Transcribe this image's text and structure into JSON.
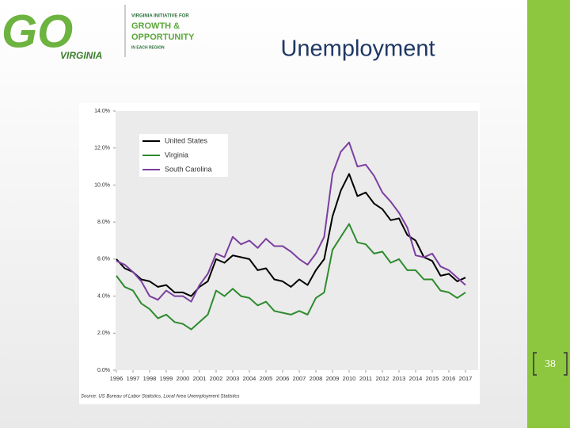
{
  "slide": {
    "logo_mark": "GO",
    "logo_state": "VIRGINIA",
    "logo_line1": "VIRGINIA INITIATIVE FOR",
    "logo_line2": "GROWTH &",
    "logo_line3": "OPPORTUNITY",
    "logo_line4": "IN EACH REGION",
    "title": "Unemployment",
    "page_number": "38"
  },
  "chart_data": {
    "type": "line",
    "source": "Source: US Bureau of Labor Statistics, Local Area Unemployment Statistics",
    "x": [
      1996,
      1996.5,
      1997,
      1997.5,
      1998,
      1998.5,
      1999,
      1999.5,
      2000,
      2000.5,
      2001,
      2001.5,
      2002,
      2002.5,
      2003,
      2003.5,
      2004,
      2004.5,
      2005,
      2005.5,
      2006,
      2006.5,
      2007,
      2007.5,
      2008,
      2008.5,
      2009,
      2009.5,
      2010,
      2010.5,
      2011,
      2011.5,
      2012,
      2012.5,
      2013,
      2013.5,
      2014,
      2014.5,
      2015,
      2015.5,
      2016,
      2016.5,
      2017
    ],
    "series": [
      {
        "name": "United States",
        "color": "#000000",
        "values": [
          6.0,
          5.5,
          5.3,
          4.9,
          4.8,
          4.5,
          4.6,
          4.2,
          4.2,
          4.0,
          4.5,
          4.8,
          6.0,
          5.8,
          6.2,
          6.1,
          6.0,
          5.4,
          5.5,
          4.9,
          4.8,
          4.5,
          4.9,
          4.6,
          5.4,
          6.0,
          8.3,
          9.7,
          10.6,
          9.4,
          9.6,
          9.0,
          8.7,
          8.1,
          8.2,
          7.3,
          7.0,
          6.1,
          5.9,
          5.1,
          5.2,
          4.8,
          5.0
        ]
      },
      {
        "name": "Virginia",
        "color": "#2e8b2e",
        "values": [
          5.1,
          4.5,
          4.3,
          3.6,
          3.3,
          2.8,
          3.0,
          2.6,
          2.5,
          2.2,
          2.6,
          3.0,
          4.3,
          4.0,
          4.4,
          4.0,
          3.9,
          3.5,
          3.7,
          3.2,
          3.1,
          3.0,
          3.2,
          3.0,
          3.9,
          4.2,
          6.5,
          7.2,
          7.9,
          6.9,
          6.8,
          6.3,
          6.4,
          5.8,
          6.0,
          5.4,
          5.4,
          4.9,
          4.9,
          4.3,
          4.2,
          3.9,
          4.2
        ]
      },
      {
        "name": "South Carolina",
        "color": "#7b3fa0",
        "values": [
          5.9,
          5.7,
          5.3,
          4.8,
          4.0,
          3.8,
          4.3,
          4.0,
          4.0,
          3.7,
          4.6,
          5.2,
          6.3,
          6.1,
          7.2,
          6.8,
          7.0,
          6.6,
          7.1,
          6.7,
          6.7,
          6.4,
          6.0,
          5.7,
          6.3,
          7.2,
          10.6,
          11.8,
          12.3,
          11.0,
          11.1,
          10.5,
          9.6,
          9.1,
          8.5,
          7.7,
          6.2,
          6.1,
          6.3,
          5.6,
          5.4,
          5.0,
          4.6
        ]
      }
    ],
    "xlim": [
      1996,
      2017
    ],
    "xticks": [
      1996,
      1997,
      1998,
      1999,
      2000,
      2001,
      2002,
      2003,
      2004,
      2005,
      2006,
      2007,
      2008,
      2009,
      2010,
      2011,
      2012,
      2013,
      2014,
      2015,
      2016,
      2017
    ],
    "ylim": [
      0,
      14
    ],
    "yticks": [
      {
        "value": 0,
        "label": "0.0%"
      },
      {
        "value": 2,
        "label": "2.0%"
      },
      {
        "value": 4,
        "label": "4.0%"
      },
      {
        "value": 6,
        "label": "6.0%"
      },
      {
        "value": 8,
        "label": "8.0%"
      },
      {
        "value": 10,
        "label": "10.0%"
      },
      {
        "value": 12,
        "label": "12.0%"
      },
      {
        "value": 14,
        "label": "14.0%"
      }
    ],
    "grid": false,
    "legend": "upper left"
  }
}
